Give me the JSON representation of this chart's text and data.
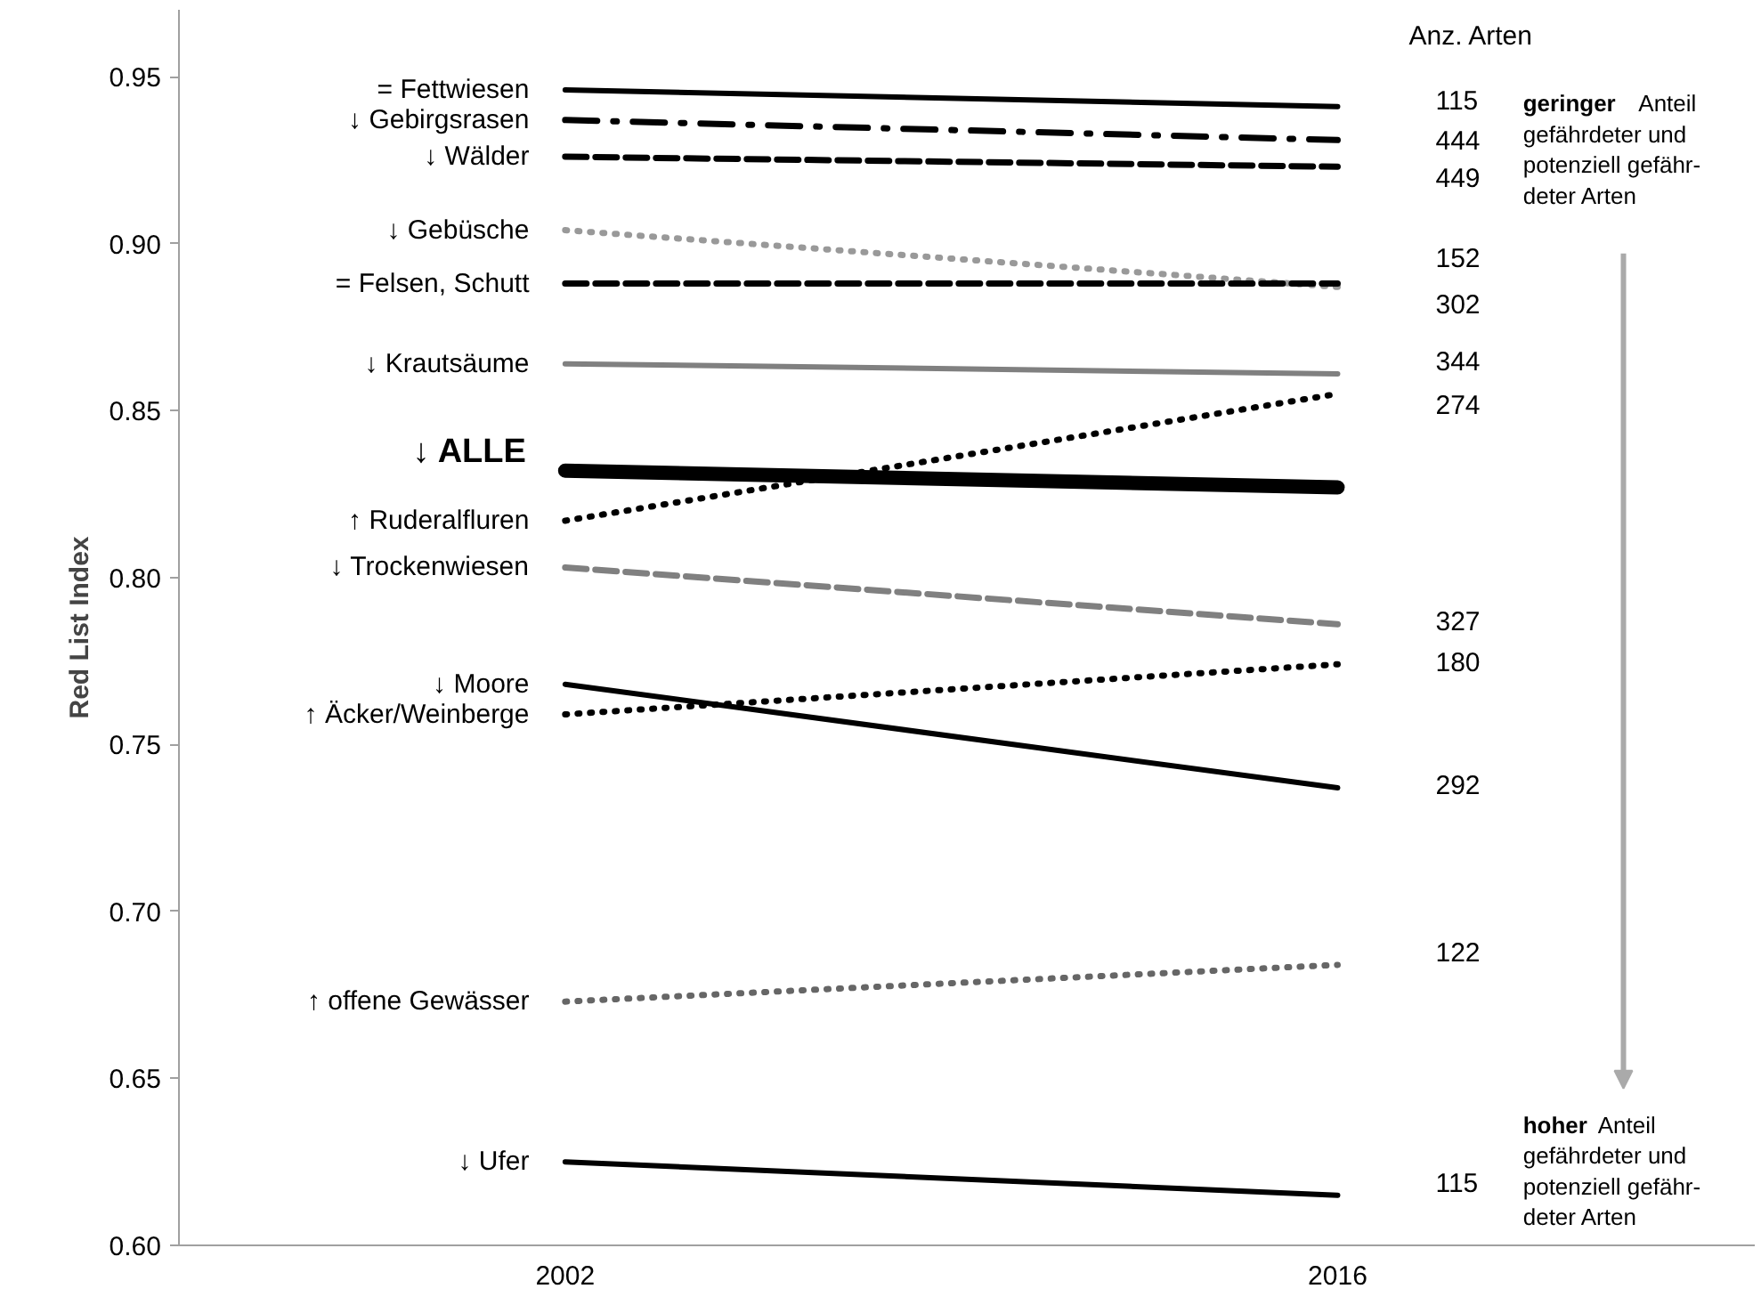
{
  "chart_data": {
    "type": "line",
    "ylabel": "Red List Index",
    "categories": [
      "2002",
      "2016"
    ],
    "ylim": [
      0.6,
      0.97
    ],
    "yticks": [
      {
        "value": 0.6,
        "label": "0.60"
      },
      {
        "value": 0.65,
        "label": "0.65"
      },
      {
        "value": 0.7,
        "label": "0.70"
      },
      {
        "value": 0.75,
        "label": "0.75"
      },
      {
        "value": 0.8,
        "label": "0.80"
      },
      {
        "value": 0.85,
        "label": "0.85"
      },
      {
        "value": 0.9,
        "label": "0.90"
      },
      {
        "value": 0.95,
        "label": "0.95"
      }
    ],
    "grid": false,
    "legend": false,
    "marker": "none",
    "series": [
      {
        "name": "=  Fettwiesen",
        "color": "#000000",
        "line_style": "solid",
        "values": [
          0.946,
          0.941
        ]
      },
      {
        "name": "↓  Gebirgsrasen",
        "color": "#000000",
        "line_style": "dashdot",
        "values": [
          0.937,
          0.931
        ]
      },
      {
        "name": "↓  Wälder",
        "color": "#000000",
        "line_style": "dashed",
        "values": [
          0.926,
          0.923
        ]
      },
      {
        "name": "↓  Gebüsche",
        "color": "#999999",
        "line_style": "dotted",
        "values": [
          0.904,
          0.887
        ]
      },
      {
        "name": "=  Felsen, Schutt",
        "color": "#000000",
        "line_style": "dashed",
        "values": [
          0.888,
          0.888
        ]
      },
      {
        "name": "↓  Krautsäume",
        "color": "#808080",
        "line_style": "solid",
        "values": [
          0.864,
          0.861
        ]
      },
      {
        "name": "↓  ALLE",
        "color": "#000000",
        "line_style": "solid",
        "values": [
          0.832,
          0.827
        ]
      },
      {
        "name": "↑  Ruderalfluren",
        "color": "#000000",
        "line_style": "dotted",
        "values": [
          0.817,
          0.855
        ]
      },
      {
        "name": "↓  Trockenwiesen",
        "color": "#808080",
        "line_style": "dashed",
        "values": [
          0.803,
          0.786
        ]
      },
      {
        "name": "↓  Moore",
        "color": "#000000",
        "line_style": "solid",
        "values": [
          0.768,
          0.737
        ]
      },
      {
        "name": "↑  Äcker/Weinberge",
        "color": "#000000",
        "line_style": "dotted",
        "values": [
          0.759,
          0.774
        ]
      },
      {
        "name": "↑  offene Gewässer",
        "color": "#666666",
        "line_style": "dotted",
        "values": [
          0.673,
          0.684
        ]
      },
      {
        "name": "↓  Ufer",
        "color": "#000000",
        "line_style": "solid",
        "values": [
          0.625,
          0.615
        ]
      }
    ],
    "annotations": [
      "Anz. Arten",
      "geringer Anteil\ngefährdeter und\npotenziell gefähr-\ndeter Arten",
      "hoher Anteil\ngefährdeter und\npotenziell gefähr-\ndeter Arten",
      "115",
      "444",
      "449",
      "152",
      "302",
      "344",
      "274",
      "327",
      "180",
      "292",
      "122",
      "115"
    ]
  }
}
